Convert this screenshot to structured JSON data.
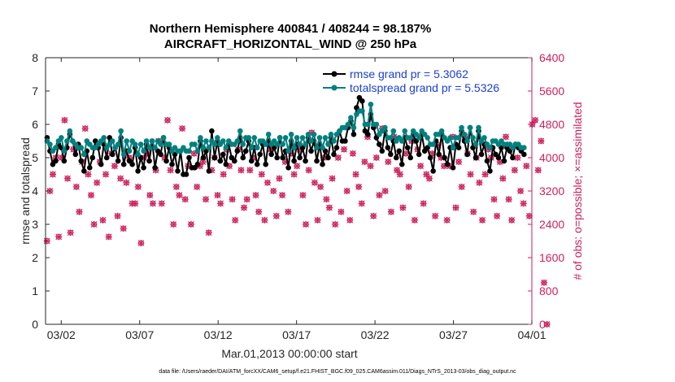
{
  "colors": {
    "rmse": "#000000",
    "spread": "#00807f",
    "obs": "#cc1f5c",
    "legend_text": "#1a3fd6"
  },
  "chart_data": {
    "type": "line",
    "title": "Northern Hemisphere 400841 / 408244 = 98.187%",
    "subtitle": "AIRCRAFT_HORIZONTAL_WIND @ 250 hPa",
    "xlabel": "Mar.01,2013 00:00:00 start",
    "ylabel": "rmse and totalspread",
    "y2label": "# of obs: o=possible; ×=assimilated",
    "footer": "data file: /Users/raeder/DAI/ATM_forcXX/CAM6_setup/f.e21.FHIST_BGC.f09_025.CAM6assim.011/Diags_NTrS_2013-03/obs_diag_output.nc",
    "xlim": [
      1,
      32
    ],
    "ylim": [
      0,
      8
    ],
    "y2lim": [
      0,
      6400
    ],
    "xticks": [
      2,
      7,
      12,
      17,
      22,
      27,
      32
    ],
    "xtick_labels": [
      "03/02",
      "03/07",
      "03/12",
      "03/17",
      "03/22",
      "03/27",
      "04/01"
    ],
    "yticks": [
      "0",
      "1",
      "2",
      "3",
      "4",
      "5",
      "6",
      "7",
      "8"
    ],
    "y2ticks": [
      "0",
      "800",
      "1600",
      "2400",
      "3200",
      "4000",
      "4800",
      "5600",
      "6400"
    ],
    "legend": [
      {
        "name": "rmse grand pr = 5.3062"
      },
      {
        "name": "totalspread grand pr = 5.5326"
      }
    ],
    "series": [
      {
        "name": "rmse",
        "values": [
          5.6,
          5.2,
          4.8,
          4.9,
          5.4,
          5.3,
          4.9,
          5.3,
          5.7,
          5.5,
          5.1,
          5.4,
          4.9,
          4.6,
          5.2,
          4.7,
          5.0,
          5.5,
          5.3,
          4.8,
          5.4,
          5.0,
          5.6,
          5.1,
          5.3,
          4.9,
          5.6,
          4.8,
          5.2,
          4.9,
          4.8,
          5.3,
          4.6,
          5.0,
          4.7,
          5.4,
          4.9,
          5.5,
          4.7,
          5.2,
          5.1,
          5.6,
          4.9,
          5.3,
          4.8,
          5.1,
          4.6,
          5.2,
          4.5,
          4.5,
          5.0,
          4.7,
          4.7,
          4.8,
          5.5,
          5.0,
          5.2,
          4.6,
          5.8,
          5.0,
          5.5,
          4.9,
          5.1,
          4.8,
          5.4,
          5.0,
          4.9,
          5.2,
          5.6,
          5.0,
          5.2,
          5.5,
          4.9,
          5.3,
          4.8,
          5.1,
          5.4,
          4.8,
          5.5,
          5.1,
          5.3,
          5.0,
          5.6,
          5.0,
          5.2,
          4.7,
          5.5,
          4.9,
          5.4,
          5.0,
          5.3,
          4.9,
          5.6,
          5.2,
          5.5,
          4.9,
          5.4,
          4.8,
          5.2,
          5.0,
          5.6,
          5.1,
          5.3,
          5.8,
          5.5,
          5.5,
          5.9,
          6.1,
          5.7,
          6.5,
          6.8,
          6.7,
          5.8,
          5.7,
          6.3,
          5.9,
          5.6,
          5.4,
          5.2,
          5.8,
          5.3,
          5.1,
          5.5,
          5.0,
          5.2,
          4.8,
          5.6,
          5.3,
          5.0,
          5.7,
          5.5,
          5.1,
          5.7,
          5.2,
          5.3,
          5.0,
          4.6,
          5.5,
          5.1,
          5.7,
          5.0,
          4.8,
          5.3,
          4.7,
          5.4,
          5.3,
          5.8,
          5.5,
          5.1,
          5.9,
          5.3,
          5.0,
          5.8,
          5.1,
          5.4,
          4.9,
          4.6,
          5.3,
          5.1,
          5.0,
          5.3,
          4.9,
          5.3,
          5.2,
          5.0,
          5.4,
          5.3,
          5.2,
          5.1
        ]
      },
      {
        "name": "totalspread",
        "values": [
          5.5,
          5.4,
          5.2,
          5.3,
          5.5,
          5.6,
          5.2,
          5.5,
          5.8,
          5.5,
          5.4,
          5.3,
          5.3,
          5.1,
          5.5,
          5.4,
          5.3,
          5.3,
          5.4,
          5.5,
          5.6,
          5.3,
          5.4,
          5.5,
          5.3,
          5.4,
          5.8,
          5.1,
          5.5,
          5.2,
          5.5,
          5.4,
          5.1,
          5.4,
          5.2,
          5.5,
          5.3,
          5.5,
          5.3,
          5.5,
          5.4,
          5.6,
          5.4,
          5.4,
          5.2,
          5.3,
          5.2,
          5.2,
          5.3,
          5.2,
          5.2,
          5.4,
          5.4,
          5.2,
          5.6,
          5.3,
          5.5,
          5.3,
          5.5,
          5.4,
          5.6,
          5.4,
          5.5,
          5.3,
          5.5,
          5.4,
          5.4,
          5.5,
          5.8,
          5.4,
          5.6,
          5.6,
          5.3,
          5.6,
          5.3,
          5.5,
          5.5,
          5.4,
          5.7,
          5.4,
          5.5,
          5.4,
          5.6,
          5.4,
          5.6,
          5.2,
          5.7,
          5.3,
          5.6,
          5.4,
          5.6,
          5.4,
          5.7,
          5.5,
          5.7,
          5.3,
          5.6,
          5.3,
          5.6,
          5.4,
          5.7,
          5.5,
          5.7,
          5.8,
          5.9,
          5.9,
          6.0,
          6.2,
          5.9,
          6.3,
          6.4,
          6.4,
          6.0,
          6.0,
          6.6,
          6.0,
          6.0,
          5.7,
          5.8,
          5.9,
          5.6,
          5.6,
          5.8,
          5.5,
          5.6,
          5.5,
          5.8,
          5.6,
          5.6,
          5.8,
          5.7,
          5.6,
          5.8,
          5.7,
          5.6,
          5.4,
          5.4,
          5.7,
          5.7,
          5.8,
          5.6,
          5.5,
          5.6,
          5.3,
          5.6,
          5.6,
          5.9,
          5.7,
          5.5,
          5.9,
          5.6,
          5.4,
          5.9,
          5.5,
          5.6,
          5.4,
          5.3,
          5.5,
          5.5,
          5.4,
          5.5,
          5.4,
          5.4,
          5.4,
          5.3,
          5.4,
          5.4,
          5.3,
          5.3
        ]
      },
      {
        "name": "obs (o=possible, x=assimilated)",
        "axis": "right",
        "values": [
          2000,
          3200,
          3600,
          4000,
          2100,
          4000,
          4900,
          3500,
          2200,
          4200,
          3300,
          2700,
          3900,
          4700,
          3600,
          3100,
          2400,
          3400,
          3900,
          2500,
          3600,
          2100,
          4100,
          3800,
          2600,
          3500,
          2300,
          3400,
          4000,
          2900,
          2900,
          3300,
          1950,
          4000,
          4100,
          3100,
          2900,
          3700,
          4400,
          2900,
          4000,
          4900,
          3700,
          2400,
          3300,
          3100,
          4700,
          3000,
          3800,
          2400,
          4100,
          3300,
          3800,
          3900,
          3000,
          2200,
          3700,
          4000,
          3100,
          2900,
          3600,
          4200,
          3800,
          3000,
          2500,
          4200,
          3700,
          2800,
          3000,
          3700,
          4000,
          3100,
          2700,
          3600,
          2500,
          3400,
          4200,
          3200,
          2600,
          3500,
          3100,
          3900,
          2700,
          4100,
          3600,
          3800,
          4200,
          3100,
          2400,
          3700,
          4600,
          3400,
          2500,
          3300,
          4000,
          3000,
          2800,
          3500,
          2400,
          4000,
          2700,
          4200,
          3200,
          2500,
          4100,
          3600,
          3300,
          2900,
          3900,
          4500,
          3800,
          2600,
          4000,
          3100,
          4700,
          3200,
          3900,
          2700,
          4500,
          3700,
          3600,
          2800,
          4100,
          3300,
          4400,
          2500,
          4200,
          3800,
          2900,
          3600,
          3500,
          4100,
          2600,
          4300,
          4000,
          3800,
          2500,
          3800,
          4500,
          2800,
          3900,
          3300,
          4500,
          4100,
          3600,
          2700,
          4000,
          3400,
          2500,
          3600,
          4200,
          4000,
          3000,
          2600,
          3900,
          3500,
          4500,
          3000,
          2500,
          3700,
          4000,
          3200,
          2900,
          3800,
          2600,
          4800,
          4900,
          3700,
          4400,
          1000,
          0
        ]
      }
    ]
  }
}
